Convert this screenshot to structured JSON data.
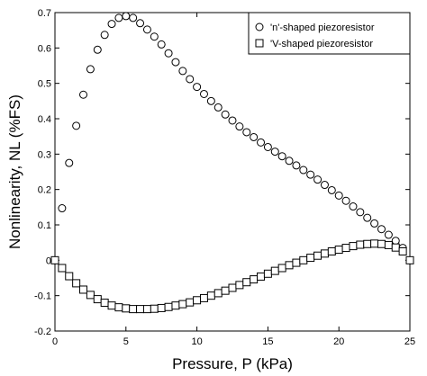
{
  "chart_data": {
    "type": "scatter",
    "title": "",
    "xlabel": "Pressure, P (kPa)",
    "ylabel": "Nonlinearity, NL (%FS)",
    "xlim": [
      0,
      25
    ],
    "ylim": [
      -0.2,
      0.7
    ],
    "xticks": [
      "0",
      "5",
      "10",
      "15",
      "20",
      "25"
    ],
    "yticks": [
      "-0.2",
      "-0.1",
      "0",
      "0.1",
      "0.2",
      "0.3",
      "0.4",
      "0.5",
      "0.6",
      "0.7"
    ],
    "grid": false,
    "legend_position": "top-right",
    "series": [
      {
        "name": "'n'-shaped piezoresistor",
        "marker": "circle",
        "x": [
          0,
          0.5,
          1,
          1.5,
          2,
          2.5,
          3,
          3.5,
          4,
          4.5,
          5,
          5.5,
          6,
          6.5,
          7,
          7.5,
          8,
          8.5,
          9,
          9.5,
          10,
          10.5,
          11,
          11.5,
          12,
          12.5,
          13,
          13.5,
          14,
          14.5,
          15,
          15.5,
          16,
          16.5,
          17,
          17.5,
          18,
          18.5,
          19,
          19.5,
          20,
          20.5,
          21,
          21.5,
          22,
          22.5,
          23,
          23.5,
          24,
          24.5,
          25
        ],
        "y": [
          0.0,
          0.147,
          0.275,
          0.38,
          0.468,
          0.54,
          0.595,
          0.637,
          0.668,
          0.685,
          0.69,
          0.685,
          0.67,
          0.652,
          0.632,
          0.61,
          0.585,
          0.56,
          0.535,
          0.512,
          0.49,
          0.47,
          0.45,
          0.432,
          0.412,
          0.395,
          0.378,
          0.362,
          0.348,
          0.333,
          0.32,
          0.307,
          0.294,
          0.281,
          0.268,
          0.255,
          0.242,
          0.228,
          0.213,
          0.198,
          0.183,
          0.168,
          0.152,
          0.136,
          0.12,
          0.104,
          0.088,
          0.072,
          0.055,
          0.035,
          0.0
        ]
      },
      {
        "name": "'V-shaped piezoresistor",
        "marker": "square",
        "x": [
          0,
          0.5,
          1,
          1.5,
          2,
          2.5,
          3,
          3.5,
          4,
          4.5,
          5,
          5.5,
          6,
          6.5,
          7,
          7.5,
          8,
          8.5,
          9,
          9.5,
          10,
          10.5,
          11,
          11.5,
          12,
          12.5,
          13,
          13.5,
          14,
          14.5,
          15,
          15.5,
          16,
          16.5,
          17,
          17.5,
          18,
          18.5,
          19,
          19.5,
          20,
          20.5,
          21,
          21.5,
          22,
          22.5,
          23,
          23.5,
          24,
          24.5,
          25
        ],
        "y": [
          0.0,
          -0.022,
          -0.045,
          -0.065,
          -0.083,
          -0.098,
          -0.11,
          -0.12,
          -0.128,
          -0.133,
          -0.136,
          -0.138,
          -0.138,
          -0.138,
          -0.137,
          -0.135,
          -0.132,
          -0.128,
          -0.124,
          -0.119,
          -0.113,
          -0.107,
          -0.1,
          -0.093,
          -0.086,
          -0.078,
          -0.07,
          -0.062,
          -0.054,
          -0.046,
          -0.038,
          -0.03,
          -0.022,
          -0.014,
          -0.007,
          0.0,
          0.007,
          0.013,
          0.019,
          0.025,
          0.03,
          0.035,
          0.04,
          0.044,
          0.046,
          0.047,
          0.046,
          0.043,
          0.036,
          0.025,
          0.0
        ]
      }
    ]
  }
}
